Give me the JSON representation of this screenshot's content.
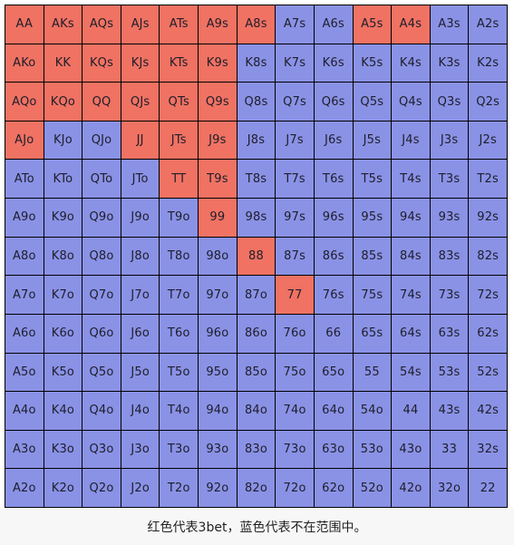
{
  "colors": {
    "in_range": "#F07263",
    "out_of_range": "#8A92E6",
    "grid_line": "#000000"
  },
  "caption": "红色代表3bet，蓝色代表不在范围中。",
  "grid": {
    "rows": [
      [
        {
          "label": "AA",
          "in_range": true
        },
        {
          "label": "AKs",
          "in_range": true
        },
        {
          "label": "AQs",
          "in_range": true
        },
        {
          "label": "AJs",
          "in_range": true
        },
        {
          "label": "ATs",
          "in_range": true
        },
        {
          "label": "A9s",
          "in_range": true
        },
        {
          "label": "A8s",
          "in_range": true
        },
        {
          "label": "A7s",
          "in_range": false
        },
        {
          "label": "A6s",
          "in_range": false
        },
        {
          "label": "A5s",
          "in_range": true
        },
        {
          "label": "A4s",
          "in_range": true
        },
        {
          "label": "A3s",
          "in_range": false
        },
        {
          "label": "A2s",
          "in_range": false
        }
      ],
      [
        {
          "label": "AKo",
          "in_range": true
        },
        {
          "label": "KK",
          "in_range": true
        },
        {
          "label": "KQs",
          "in_range": true
        },
        {
          "label": "KJs",
          "in_range": true
        },
        {
          "label": "KTs",
          "in_range": true
        },
        {
          "label": "K9s",
          "in_range": true
        },
        {
          "label": "K8s",
          "in_range": false
        },
        {
          "label": "K7s",
          "in_range": false
        },
        {
          "label": "K6s",
          "in_range": false
        },
        {
          "label": "K5s",
          "in_range": false
        },
        {
          "label": "K4s",
          "in_range": false
        },
        {
          "label": "K3s",
          "in_range": false
        },
        {
          "label": "K2s",
          "in_range": false
        }
      ],
      [
        {
          "label": "AQo",
          "in_range": true
        },
        {
          "label": "KQo",
          "in_range": true
        },
        {
          "label": "QQ",
          "in_range": true
        },
        {
          "label": "QJs",
          "in_range": true
        },
        {
          "label": "QTs",
          "in_range": true
        },
        {
          "label": "Q9s",
          "in_range": true
        },
        {
          "label": "Q8s",
          "in_range": false
        },
        {
          "label": "Q7s",
          "in_range": false
        },
        {
          "label": "Q6s",
          "in_range": false
        },
        {
          "label": "Q5s",
          "in_range": false
        },
        {
          "label": "Q4s",
          "in_range": false
        },
        {
          "label": "Q3s",
          "in_range": false
        },
        {
          "label": "Q2s",
          "in_range": false
        }
      ],
      [
        {
          "label": "AJo",
          "in_range": true
        },
        {
          "label": "KJo",
          "in_range": false
        },
        {
          "label": "QJo",
          "in_range": false
        },
        {
          "label": "JJ",
          "in_range": true
        },
        {
          "label": "JTs",
          "in_range": true
        },
        {
          "label": "J9s",
          "in_range": true
        },
        {
          "label": "J8s",
          "in_range": false
        },
        {
          "label": "J7s",
          "in_range": false
        },
        {
          "label": "J6s",
          "in_range": false
        },
        {
          "label": "J5s",
          "in_range": false
        },
        {
          "label": "J4s",
          "in_range": false
        },
        {
          "label": "J3s",
          "in_range": false
        },
        {
          "label": "J2s",
          "in_range": false
        }
      ],
      [
        {
          "label": "ATo",
          "in_range": false
        },
        {
          "label": "KTo",
          "in_range": false
        },
        {
          "label": "QTo",
          "in_range": false
        },
        {
          "label": "JTo",
          "in_range": false
        },
        {
          "label": "TT",
          "in_range": true
        },
        {
          "label": "T9s",
          "in_range": true
        },
        {
          "label": "T8s",
          "in_range": false
        },
        {
          "label": "T7s",
          "in_range": false
        },
        {
          "label": "T6s",
          "in_range": false
        },
        {
          "label": "T5s",
          "in_range": false
        },
        {
          "label": "T4s",
          "in_range": false
        },
        {
          "label": "T3s",
          "in_range": false
        },
        {
          "label": "T2s",
          "in_range": false
        }
      ],
      [
        {
          "label": "A9o",
          "in_range": false
        },
        {
          "label": "K9o",
          "in_range": false
        },
        {
          "label": "Q9o",
          "in_range": false
        },
        {
          "label": "J9o",
          "in_range": false
        },
        {
          "label": "T9o",
          "in_range": false
        },
        {
          "label": "99",
          "in_range": true
        },
        {
          "label": "98s",
          "in_range": false
        },
        {
          "label": "97s",
          "in_range": false
        },
        {
          "label": "96s",
          "in_range": false
        },
        {
          "label": "95s",
          "in_range": false
        },
        {
          "label": "94s",
          "in_range": false
        },
        {
          "label": "93s",
          "in_range": false
        },
        {
          "label": "92s",
          "in_range": false
        }
      ],
      [
        {
          "label": "A8o",
          "in_range": false
        },
        {
          "label": "K8o",
          "in_range": false
        },
        {
          "label": "Q8o",
          "in_range": false
        },
        {
          "label": "J8o",
          "in_range": false
        },
        {
          "label": "T8o",
          "in_range": false
        },
        {
          "label": "98o",
          "in_range": false
        },
        {
          "label": "88",
          "in_range": true
        },
        {
          "label": "87s",
          "in_range": false
        },
        {
          "label": "86s",
          "in_range": false
        },
        {
          "label": "85s",
          "in_range": false
        },
        {
          "label": "84s",
          "in_range": false
        },
        {
          "label": "83s",
          "in_range": false
        },
        {
          "label": "82s",
          "in_range": false
        }
      ],
      [
        {
          "label": "A7o",
          "in_range": false
        },
        {
          "label": "K7o",
          "in_range": false
        },
        {
          "label": "Q7o",
          "in_range": false
        },
        {
          "label": "J7o",
          "in_range": false
        },
        {
          "label": "T7o",
          "in_range": false
        },
        {
          "label": "97o",
          "in_range": false
        },
        {
          "label": "87o",
          "in_range": false
        },
        {
          "label": "77",
          "in_range": true
        },
        {
          "label": "76s",
          "in_range": false
        },
        {
          "label": "75s",
          "in_range": false
        },
        {
          "label": "74s",
          "in_range": false
        },
        {
          "label": "73s",
          "in_range": false
        },
        {
          "label": "72s",
          "in_range": false
        }
      ],
      [
        {
          "label": "A6o",
          "in_range": false
        },
        {
          "label": "K6o",
          "in_range": false
        },
        {
          "label": "Q6o",
          "in_range": false
        },
        {
          "label": "J6o",
          "in_range": false
        },
        {
          "label": "T6o",
          "in_range": false
        },
        {
          "label": "96o",
          "in_range": false
        },
        {
          "label": "86o",
          "in_range": false
        },
        {
          "label": "76o",
          "in_range": false
        },
        {
          "label": "66",
          "in_range": false
        },
        {
          "label": "65s",
          "in_range": false
        },
        {
          "label": "64s",
          "in_range": false
        },
        {
          "label": "63s",
          "in_range": false
        },
        {
          "label": "62s",
          "in_range": false
        }
      ],
      [
        {
          "label": "A5o",
          "in_range": false
        },
        {
          "label": "K5o",
          "in_range": false
        },
        {
          "label": "Q5o",
          "in_range": false
        },
        {
          "label": "J5o",
          "in_range": false
        },
        {
          "label": "T5o",
          "in_range": false
        },
        {
          "label": "95o",
          "in_range": false
        },
        {
          "label": "85o",
          "in_range": false
        },
        {
          "label": "75o",
          "in_range": false
        },
        {
          "label": "65o",
          "in_range": false
        },
        {
          "label": "55",
          "in_range": false
        },
        {
          "label": "54s",
          "in_range": false
        },
        {
          "label": "53s",
          "in_range": false
        },
        {
          "label": "52s",
          "in_range": false
        }
      ],
      [
        {
          "label": "A4o",
          "in_range": false
        },
        {
          "label": "K4o",
          "in_range": false
        },
        {
          "label": "Q4o",
          "in_range": false
        },
        {
          "label": "J4o",
          "in_range": false
        },
        {
          "label": "T4o",
          "in_range": false
        },
        {
          "label": "94o",
          "in_range": false
        },
        {
          "label": "84o",
          "in_range": false
        },
        {
          "label": "74o",
          "in_range": false
        },
        {
          "label": "64o",
          "in_range": false
        },
        {
          "label": "54o",
          "in_range": false
        },
        {
          "label": "44",
          "in_range": false
        },
        {
          "label": "43s",
          "in_range": false
        },
        {
          "label": "42s",
          "in_range": false
        }
      ],
      [
        {
          "label": "A3o",
          "in_range": false
        },
        {
          "label": "K3o",
          "in_range": false
        },
        {
          "label": "Q3o",
          "in_range": false
        },
        {
          "label": "J3o",
          "in_range": false
        },
        {
          "label": "T3o",
          "in_range": false
        },
        {
          "label": "93o",
          "in_range": false
        },
        {
          "label": "83o",
          "in_range": false
        },
        {
          "label": "73o",
          "in_range": false
        },
        {
          "label": "63o",
          "in_range": false
        },
        {
          "label": "53o",
          "in_range": false
        },
        {
          "label": "43o",
          "in_range": false
        },
        {
          "label": "33",
          "in_range": false
        },
        {
          "label": "32s",
          "in_range": false
        }
      ],
      [
        {
          "label": "A2o",
          "in_range": false
        },
        {
          "label": "K2o",
          "in_range": false
        },
        {
          "label": "Q2o",
          "in_range": false
        },
        {
          "label": "J2o",
          "in_range": false
        },
        {
          "label": "T2o",
          "in_range": false
        },
        {
          "label": "92o",
          "in_range": false
        },
        {
          "label": "82o",
          "in_range": false
        },
        {
          "label": "72o",
          "in_range": false
        },
        {
          "label": "62o",
          "in_range": false
        },
        {
          "label": "52o",
          "in_range": false
        },
        {
          "label": "42o",
          "in_range": false
        },
        {
          "label": "32o",
          "in_range": false
        },
        {
          "label": "22",
          "in_range": false
        }
      ]
    ]
  }
}
